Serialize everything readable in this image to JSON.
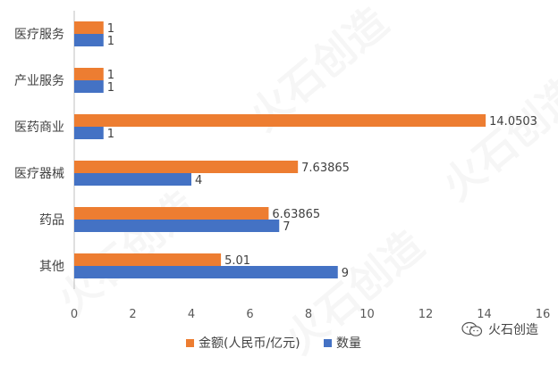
{
  "chart_data": {
    "type": "bar",
    "orientation": "horizontal",
    "categories": [
      "医疗服务",
      "产业服务",
      "医药商业",
      "医疗器械",
      "药品",
      "其他"
    ],
    "series": [
      {
        "name": "金额(人民币/亿元)",
        "color": "#ED7D31",
        "values": [
          1,
          1,
          14.0503,
          7.63865,
          6.63865,
          5.01
        ],
        "labels": [
          "1",
          "1",
          "14.0503",
          "7.63865",
          "6.63865",
          "5.01"
        ]
      },
      {
        "name": "数量",
        "color": "#4472C4",
        "values": [
          1,
          1,
          1,
          4,
          7,
          9
        ],
        "labels": [
          "1",
          "1",
          "1",
          "4",
          "7",
          "9"
        ]
      }
    ],
    "xlim": [
      0,
      16
    ],
    "xticks": [
      "0",
      "2",
      "4",
      "6",
      "8",
      "10",
      "12",
      "14",
      "16"
    ],
    "grid": false,
    "legend_position": "bottom"
  },
  "watermark": {
    "text": "火石创造",
    "credit_text": "火石创造",
    "credit_icon": "wechat-icon"
  }
}
